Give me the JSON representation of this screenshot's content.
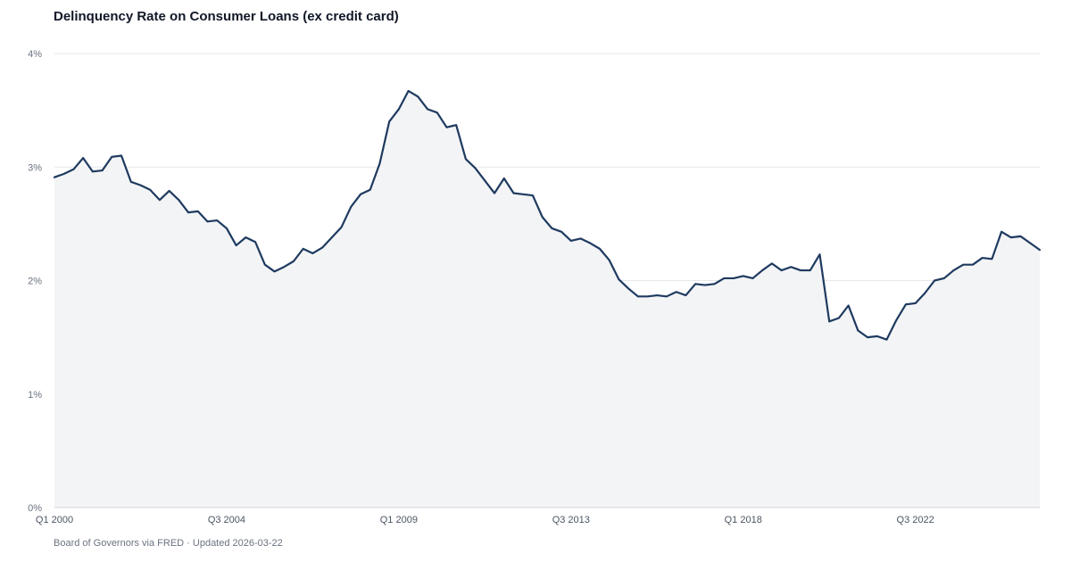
{
  "chart_data": {
    "type": "area",
    "title": "Delinquency Rate on Consumer Loans (ex credit card)",
    "xlabel": "",
    "ylabel": "",
    "ylim": [
      0,
      4
    ],
    "y_ticks": [
      "0%",
      "1%",
      "2%",
      "3%",
      "4%"
    ],
    "y_tick_values": [
      0,
      1,
      2,
      3,
      4
    ],
    "x_ticks": [
      "Q1 2000",
      "Q3 2004",
      "Q1 2009",
      "Q3 2013",
      "Q1 2018",
      "Q3 2022"
    ],
    "x_tick_values": [
      2000.0,
      2004.5,
      2009.0,
      2013.5,
      2018.0,
      2022.5
    ],
    "x_range": [
      2000.0,
      2025.75
    ],
    "grid": true,
    "colors": {
      "line": "#1e3a5f",
      "fill": "#f3f4f6",
      "grid": "#e5e7eb"
    },
    "series": [
      {
        "x": [
          2000.0,
          2000.25,
          2000.5,
          2000.75,
          2001.0,
          2001.25,
          2001.5,
          2001.75,
          2002.0,
          2002.25,
          2002.5,
          2002.75,
          2003.0,
          2003.25,
          2003.5,
          2003.75,
          2004.0,
          2004.25,
          2004.5,
          2004.75,
          2005.0,
          2005.25,
          2005.5,
          2005.75,
          2006.0,
          2006.25,
          2006.5,
          2006.75,
          2007.0,
          2007.25,
          2007.5,
          2007.75,
          2008.0,
          2008.25,
          2008.5,
          2008.75,
          2009.0,
          2009.25,
          2009.5,
          2009.75,
          2010.0,
          2010.25,
          2010.5,
          2010.75,
          2011.0,
          2011.25,
          2011.5,
          2011.75,
          2012.0,
          2012.25,
          2012.5,
          2012.75,
          2013.0,
          2013.25,
          2013.5,
          2013.75,
          2014.0,
          2014.25,
          2014.5,
          2014.75,
          2015.0,
          2015.25,
          2015.5,
          2015.75,
          2016.0,
          2016.25,
          2016.5,
          2016.75,
          2017.0,
          2017.25,
          2017.5,
          2017.75,
          2018.0,
          2018.25,
          2018.5,
          2018.75,
          2019.0,
          2019.25,
          2019.5,
          2019.75,
          2020.0,
          2020.25,
          2020.5,
          2020.75,
          2021.0,
          2021.25,
          2021.5,
          2021.75,
          2022.0,
          2022.25,
          2022.5,
          2022.75,
          2023.0,
          2023.25,
          2023.5,
          2023.75,
          2024.0,
          2024.25,
          2024.5,
          2024.75,
          2025.0,
          2025.25,
          2025.5,
          2025.75
        ],
        "values": [
          2.91,
          2.94,
          2.98,
          3.08,
          2.96,
          2.97,
          3.09,
          3.1,
          2.87,
          2.84,
          2.8,
          2.71,
          2.79,
          2.71,
          2.6,
          2.61,
          2.52,
          2.53,
          2.46,
          2.31,
          2.38,
          2.34,
          2.14,
          2.08,
          2.12,
          2.17,
          2.28,
          2.24,
          2.29,
          2.38,
          2.47,
          2.65,
          2.76,
          2.8,
          3.03,
          3.4,
          3.51,
          3.67,
          3.62,
          3.51,
          3.48,
          3.35,
          3.37,
          3.07,
          2.99,
          2.88,
          2.77,
          2.9,
          2.77,
          2.76,
          2.75,
          2.56,
          2.46,
          2.43,
          2.35,
          2.37,
          2.33,
          2.28,
          2.18,
          2.01,
          1.93,
          1.86,
          1.86,
          1.87,
          1.86,
          1.9,
          1.87,
          1.97,
          1.96,
          1.97,
          2.02,
          2.02,
          2.04,
          2.02,
          2.09,
          2.15,
          2.09,
          2.12,
          2.09,
          2.09,
          2.23,
          1.64,
          1.67,
          1.78,
          1.56,
          1.5,
          1.51,
          1.48,
          1.65,
          1.79,
          1.8,
          1.89,
          2.0,
          2.02,
          2.09,
          2.14,
          2.14,
          2.2,
          2.19,
          2.43,
          2.38,
          2.39,
          2.33,
          2.27
        ]
      }
    ]
  },
  "footer": "Board of Governors via FRED · Updated 2026-03-22"
}
